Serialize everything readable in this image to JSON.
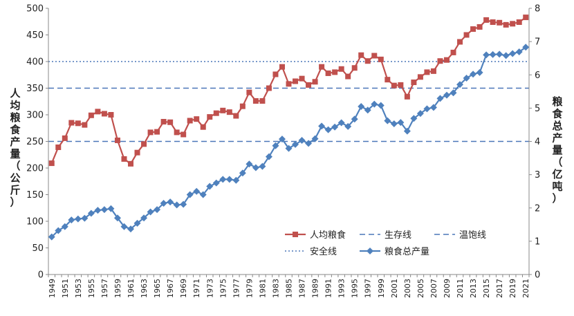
{
  "chart_data": {
    "type": "line",
    "title": "",
    "ylabel_left": "人均粮食产量（公斤）",
    "ylabel_right": "粮食总产量（亿吨）",
    "ylim_left": [
      0,
      500
    ],
    "ylim_right": [
      0,
      8
    ],
    "yticks_left": [
      0,
      50,
      100,
      150,
      200,
      250,
      300,
      350,
      400,
      450,
      500
    ],
    "yticks_right": [
      0,
      1,
      2,
      3,
      4,
      5,
      6,
      7,
      8
    ],
    "x_start": 1949,
    "x_end": 2021,
    "xtick_labels": [
      "1949",
      "1951",
      "1953",
      "1955",
      "1957",
      "1959",
      "1961",
      "1963",
      "1965",
      "1967",
      "1969",
      "1971",
      "1973",
      "1975",
      "1977",
      "1979",
      "1981",
      "1983",
      "1985",
      "1987",
      "1989",
      "1991",
      "1993",
      "1995",
      "1997",
      "1999",
      "2001",
      "2003",
      "2005",
      "2007",
      "2009",
      "2011",
      "2013",
      "2015",
      "2017",
      "2019",
      "2021"
    ],
    "grid": false,
    "legend_position": "bottom-right",
    "series": [
      {
        "name": "人均粮食",
        "axis": "left",
        "color": "#c0504d",
        "marker": "square",
        "values": [
          209,
          239,
          256,
          285,
          284,
          281,
          299,
          306,
          302,
          300,
          252,
          217,
          208,
          229,
          245,
          267,
          268,
          287,
          286,
          267,
          263,
          289,
          292,
          277,
          296,
          303,
          308,
          305,
          298,
          316,
          342,
          326,
          326,
          350,
          376,
          390,
          358,
          363,
          368,
          356,
          362,
          390,
          378,
          380,
          386,
          372,
          388,
          412,
          401,
          411,
          404,
          366,
          355,
          356,
          334,
          361,
          371,
          380,
          382,
          401,
          403,
          417,
          437,
          450,
          461,
          465,
          478,
          474,
          473,
          469,
          471,
          474,
          483
        ]
      },
      {
        "name": "粮食总产量",
        "axis": "right",
        "color": "#4f81bd",
        "marker": "diamond",
        "values": [
          1.13,
          1.32,
          1.44,
          1.64,
          1.67,
          1.69,
          1.84,
          1.93,
          1.95,
          1.98,
          1.7,
          1.44,
          1.37,
          1.54,
          1.7,
          1.88,
          1.95,
          2.14,
          2.18,
          2.09,
          2.11,
          2.4,
          2.5,
          2.4,
          2.65,
          2.75,
          2.86,
          2.86,
          2.83,
          3.05,
          3.32,
          3.21,
          3.25,
          3.54,
          3.87,
          4.07,
          3.79,
          3.91,
          4.03,
          3.94,
          4.08,
          4.46,
          4.35,
          4.43,
          4.56,
          4.45,
          4.67,
          5.05,
          4.94,
          5.12,
          5.08,
          4.62,
          4.53,
          4.57,
          4.31,
          4.69,
          4.84,
          4.98,
          5.02,
          5.29,
          5.39,
          5.46,
          5.71,
          5.9,
          6.02,
          6.07,
          6.6,
          6.61,
          6.62,
          6.58,
          6.64,
          6.69,
          6.83
        ]
      }
    ],
    "reference_lines": [
      {
        "name": "生存线",
        "value": 250,
        "axis": "left",
        "color": "#4a76b8",
        "dash": "dashed"
      },
      {
        "name": "温饱线",
        "value": 350,
        "axis": "left",
        "color": "#4a76b8",
        "dash": "dashed"
      },
      {
        "name": "安全线",
        "value": 400,
        "axis": "left",
        "color": "#4a76b8",
        "dash": "dotted"
      }
    ]
  }
}
